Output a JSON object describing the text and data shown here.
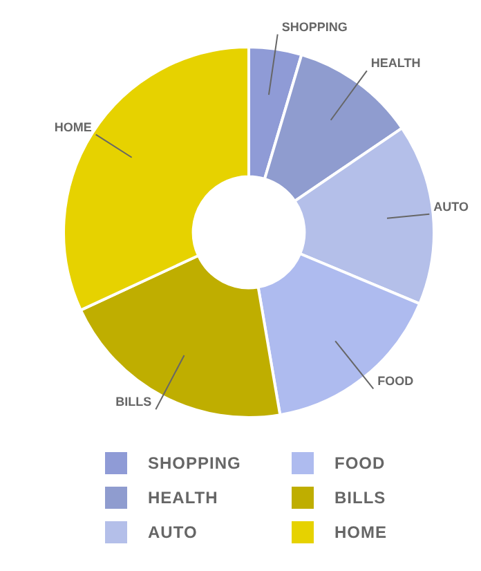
{
  "chart_data": {
    "type": "donut",
    "categories": [
      "SHOPPING",
      "HEALTH",
      "AUTO",
      "FOOD",
      "BILLS",
      "HOME"
    ],
    "values": [
      4.6,
      10.9,
      15.8,
      16,
      20.8,
      31.9
    ],
    "colors": [
      "#8f9bd6",
      "#8f9ccf",
      "#b4bfe9",
      "#aebbef",
      "#bfae00",
      "#e6d200"
    ],
    "legend": "bottom"
  }
}
